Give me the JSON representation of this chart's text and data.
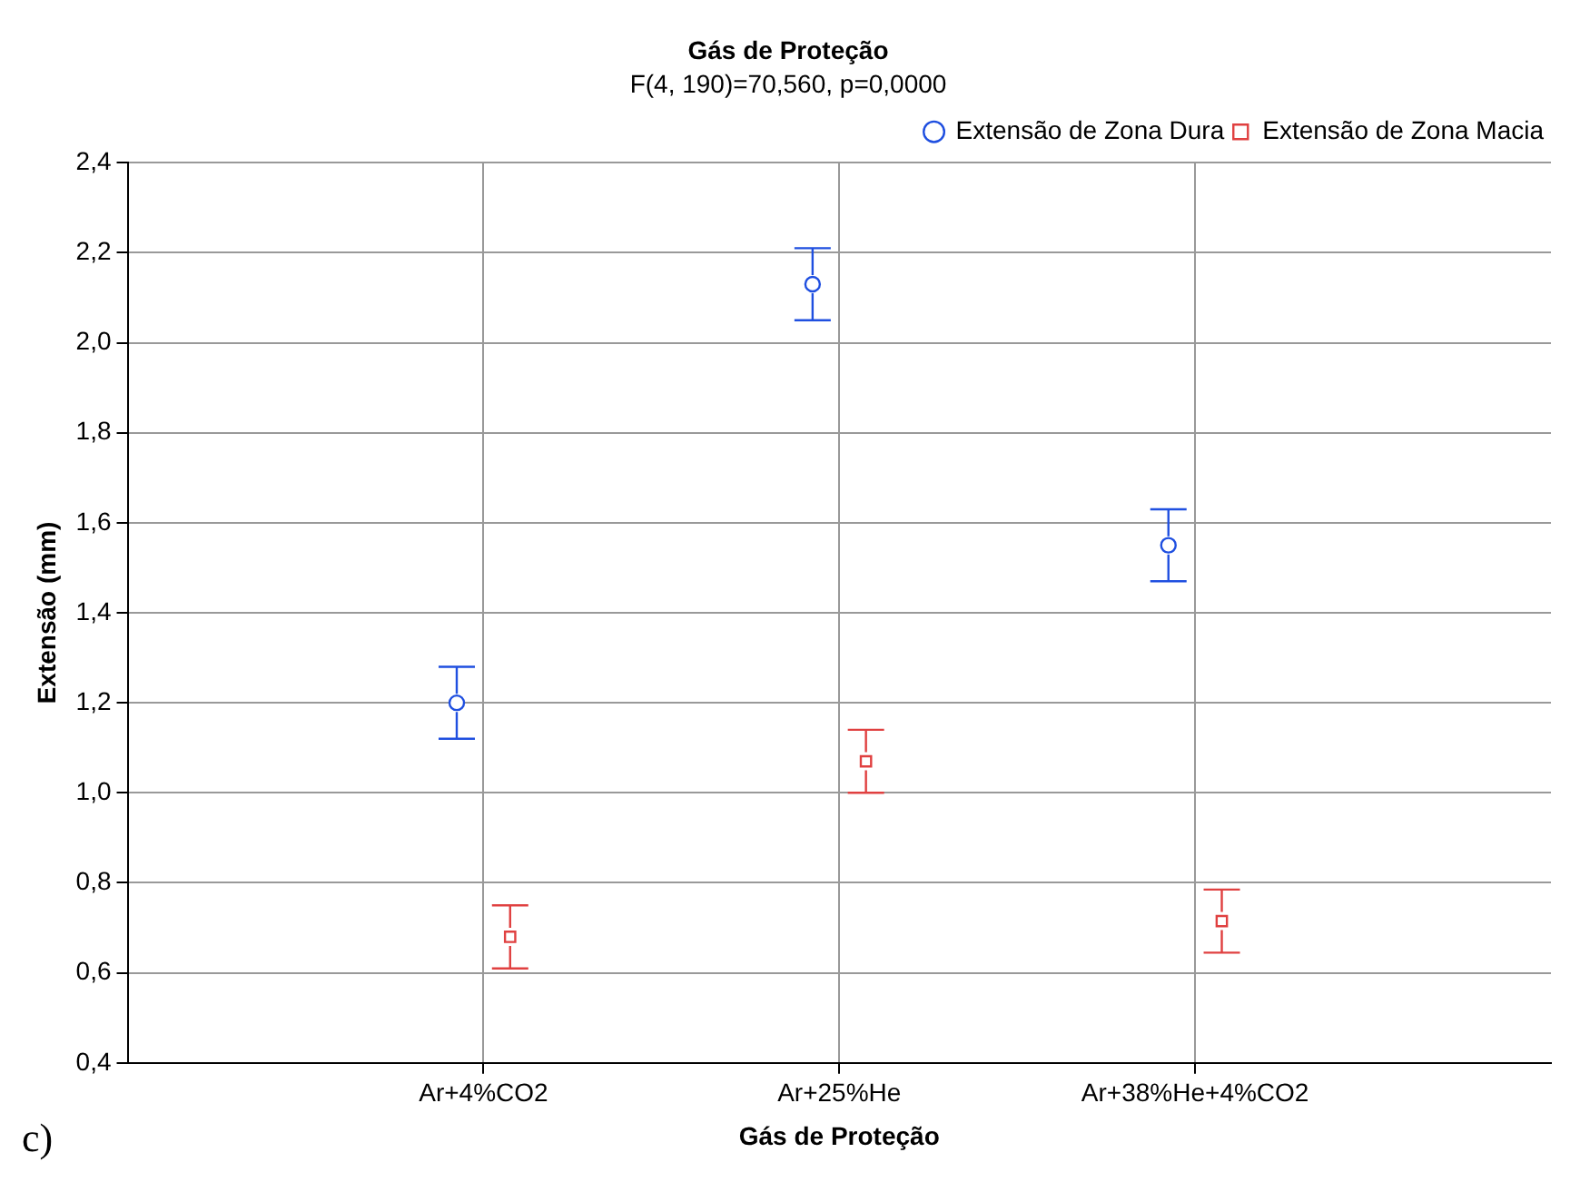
{
  "chart_data": {
    "type": "scatter",
    "title": "Gás de Proteção",
    "subtitle": "F(4, 190)=70,560, p=0,0000",
    "xlabel": "Gás de Proteção",
    "ylabel": "Extensão (mm)",
    "categories": [
      "Ar+4%CO2",
      "Ar+25%He",
      "Ar+38%He+4%CO2"
    ],
    "series": [
      {
        "name": "Extensão de Zona Dura",
        "color": "#1f4fe0",
        "marker": "circle",
        "values": [
          1.2,
          2.13,
          1.55
        ],
        "errors": [
          0.08,
          0.08,
          0.08
        ]
      },
      {
        "name": "Extensão de Zona Macia",
        "color": "#e04040",
        "marker": "square",
        "values": [
          0.68,
          1.07,
          0.715
        ],
        "errors": [
          0.07,
          0.07,
          0.07
        ]
      }
    ],
    "ylim": [
      0.4,
      2.4
    ],
    "yticks": [
      {
        "value": 0.4,
        "label": "0,4"
      },
      {
        "value": 0.6,
        "label": "0,6"
      },
      {
        "value": 0.8,
        "label": "0,8"
      },
      {
        "value": 1.0,
        "label": "1,0"
      },
      {
        "value": 1.2,
        "label": "1,2"
      },
      {
        "value": 1.4,
        "label": "1,4"
      },
      {
        "value": 1.6,
        "label": "1,6"
      },
      {
        "value": 1.8,
        "label": "1,8"
      },
      {
        "value": 2.0,
        "label": "2,0"
      },
      {
        "value": 2.2,
        "label": "2,2"
      },
      {
        "value": 2.4,
        "label": "2,4"
      }
    ],
    "grid": true,
    "legend": "top right",
    "line_style": "none",
    "annotations": [
      "c)"
    ]
  }
}
